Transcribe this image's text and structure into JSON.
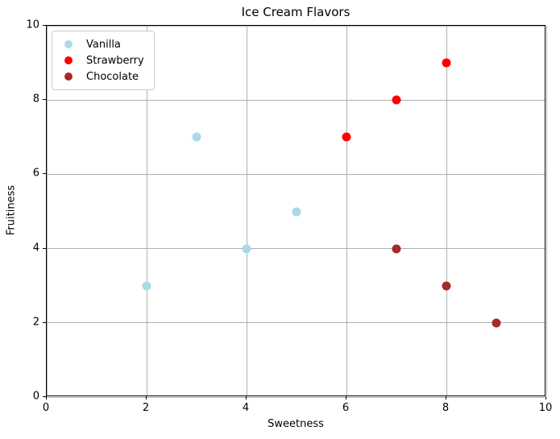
{
  "chart_data": {
    "type": "scatter",
    "title": "Ice Cream Flavors",
    "xlabel": "Sweetness",
    "ylabel": "Fruitiness",
    "xlim": [
      0,
      10
    ],
    "ylim": [
      0,
      10
    ],
    "xticks": [
      0,
      2,
      4,
      6,
      8,
      10
    ],
    "yticks": [
      0,
      2,
      4,
      6,
      8,
      10
    ],
    "grid": true,
    "legend_position": "upper left",
    "series": [
      {
        "name": "Vanilla",
        "color": "#ADD8E6",
        "points": [
          [
            2,
            3
          ],
          [
            3,
            7
          ],
          [
            4,
            4
          ],
          [
            5,
            5
          ]
        ]
      },
      {
        "name": "Strawberry",
        "color": "#FF0000",
        "points": [
          [
            6,
            7
          ],
          [
            7,
            8
          ],
          [
            8,
            9
          ]
        ]
      },
      {
        "name": "Chocolate",
        "color": "#A52A2A",
        "points": [
          [
            7,
            4
          ],
          [
            8,
            3
          ],
          [
            9,
            2
          ]
        ]
      }
    ]
  }
}
